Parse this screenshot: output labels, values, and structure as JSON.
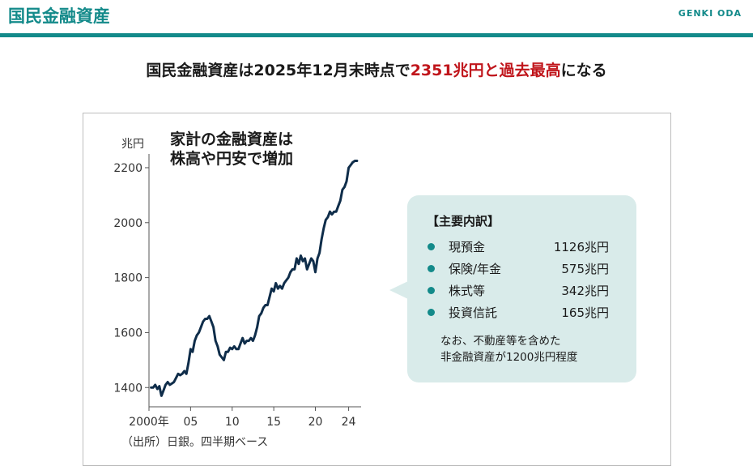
{
  "header": {
    "title": "国民金融資産",
    "author": "GENKI ODA",
    "accent_color": "#138a8a"
  },
  "headline": {
    "prefix": "国民金融資産は2025年12月末時点で",
    "highlight": "2351兆円と過去最高",
    "suffix": "になる",
    "highlight_color": "#c0151b"
  },
  "chart_data": {
    "type": "line",
    "title_line1": "家計の金融資産は",
    "title_line2": "株高や円安で増加",
    "ylabel": "兆円",
    "source": "（出所）日銀。四半期ベース",
    "line_color": "#0f2d4a",
    "xlim": [
      2000,
      2025.5
    ],
    "ylim": [
      1330,
      2250
    ],
    "yticks": [
      1400,
      1600,
      1800,
      2000,
      2200
    ],
    "xticks": [
      2000,
      2005,
      2010,
      2015,
      2020,
      2024
    ],
    "xtick_labels": [
      "2000年",
      "05",
      "10",
      "15",
      "20",
      "24"
    ],
    "x": [
      2000.25,
      2000.5,
      2000.75,
      2001.0,
      2001.25,
      2001.5,
      2001.75,
      2002.0,
      2002.25,
      2002.5,
      2002.75,
      2003.0,
      2003.25,
      2003.5,
      2003.75,
      2004.0,
      2004.25,
      2004.5,
      2004.75,
      2005.0,
      2005.25,
      2005.5,
      2005.75,
      2006.0,
      2006.25,
      2006.5,
      2006.75,
      2007.0,
      2007.25,
      2007.5,
      2007.75,
      2008.0,
      2008.25,
      2008.5,
      2008.75,
      2009.0,
      2009.25,
      2009.5,
      2009.75,
      2010.0,
      2010.25,
      2010.5,
      2010.75,
      2011.0,
      2011.25,
      2011.5,
      2011.75,
      2012.0,
      2012.25,
      2012.5,
      2012.75,
      2013.0,
      2013.25,
      2013.5,
      2013.75,
      2014.0,
      2014.25,
      2014.5,
      2014.75,
      2015.0,
      2015.25,
      2015.5,
      2015.75,
      2016.0,
      2016.25,
      2016.5,
      2016.75,
      2017.0,
      2017.25,
      2017.5,
      2017.75,
      2018.0,
      2018.25,
      2018.5,
      2018.75,
      2019.0,
      2019.25,
      2019.5,
      2019.75,
      2020.0,
      2020.25,
      2020.5,
      2020.75,
      2021.0,
      2021.25,
      2021.5,
      2021.75,
      2022.0,
      2022.25,
      2022.5,
      2022.75,
      2023.0,
      2023.25,
      2023.5,
      2023.75,
      2024.0,
      2024.25,
      2024.5,
      2024.75,
      2025.0
    ],
    "y": [
      1400,
      1400,
      1410,
      1395,
      1405,
      1370,
      1390,
      1410,
      1420,
      1410,
      1415,
      1420,
      1435,
      1450,
      1445,
      1450,
      1460,
      1450,
      1490,
      1540,
      1530,
      1570,
      1590,
      1600,
      1620,
      1640,
      1650,
      1650,
      1660,
      1640,
      1620,
      1570,
      1550,
      1520,
      1510,
      1500,
      1530,
      1530,
      1545,
      1540,
      1550,
      1540,
      1540,
      1560,
      1580,
      1560,
      1570,
      1570,
      1580,
      1570,
      1590,
      1620,
      1660,
      1670,
      1690,
      1700,
      1700,
      1730,
      1760,
      1750,
      1780,
      1760,
      1770,
      1760,
      1780,
      1790,
      1800,
      1820,
      1830,
      1830,
      1870,
      1850,
      1880,
      1860,
      1870,
      1830,
      1850,
      1870,
      1860,
      1820,
      1870,
      1890,
      1940,
      1980,
      2010,
      2020,
      2040,
      2030,
      2040,
      2040,
      2060,
      2080,
      2120,
      2130,
      2150,
      2200,
      2210,
      2220,
      2225,
      2225
    ]
  },
  "callout": {
    "heading": "【主要内訳】",
    "items": [
      {
        "label": "現預金",
        "amount": "1126兆円"
      },
      {
        "label": "保険/年金",
        "amount": "575兆円"
      },
      {
        "label": "株式等",
        "amount": "342兆円"
      },
      {
        "label": "投資信託",
        "amount": "165兆円"
      }
    ],
    "note_line1": "なお、不動産等を含めた",
    "note_line2": "非金融資産が1200兆円程度",
    "bg_color": "#d9ebea"
  }
}
